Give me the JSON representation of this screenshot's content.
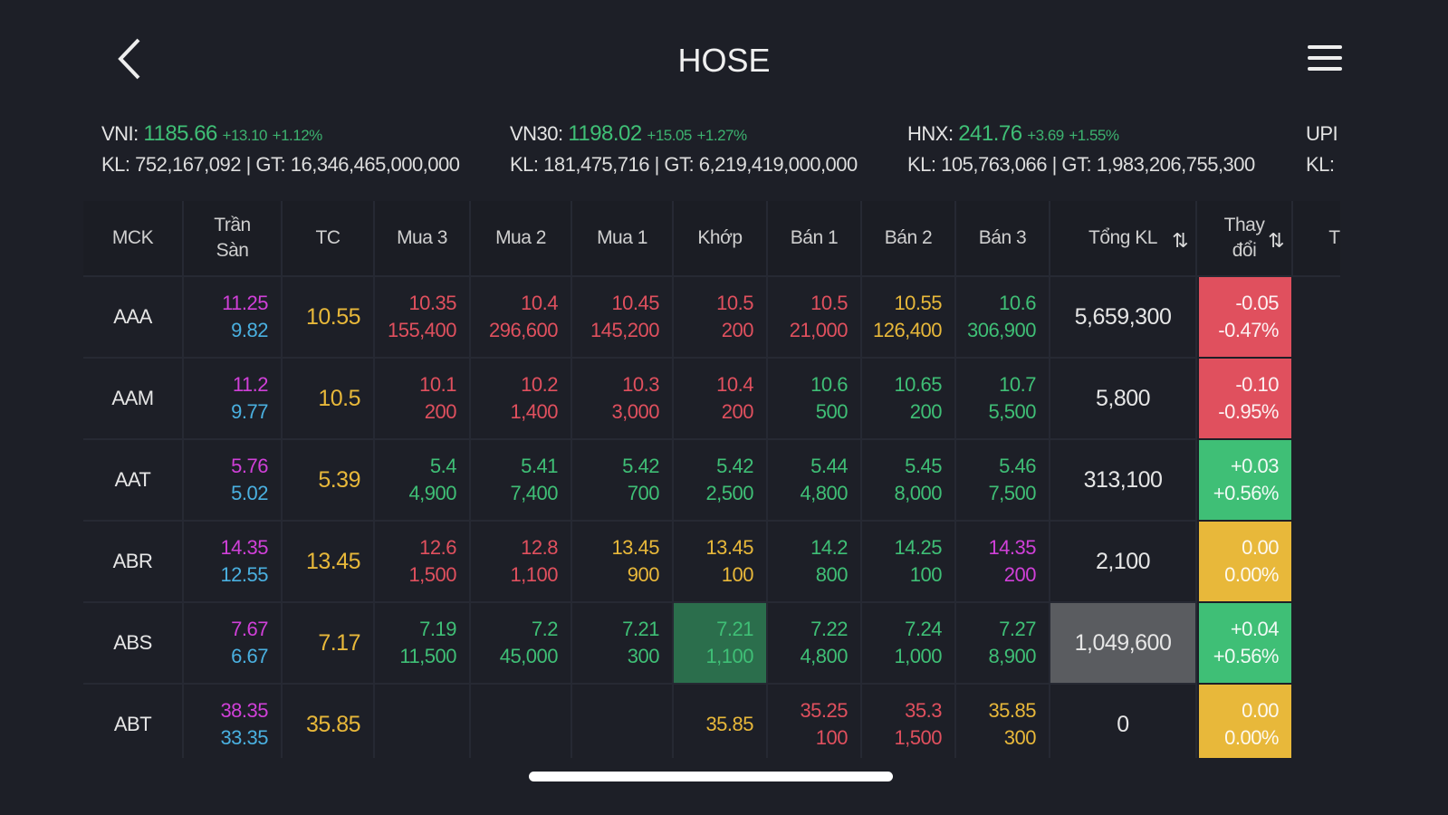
{
  "header": {
    "title": "HOSE",
    "back_icon": "chevron-left-icon",
    "menu_icon": "hamburger-menu-icon"
  },
  "indices": [
    {
      "name": "VNI:",
      "value": "1185.66",
      "change": "+13.10",
      "pct": "+1.12%",
      "kl": "KL: 752,167,092 | GT: 16,346,465,000,000"
    },
    {
      "name": "VN30:",
      "value": "1198.02",
      "change": "+15.05",
      "pct": "+1.27%",
      "kl": "KL: 181,475,716 | GT: 6,219,419,000,000"
    },
    {
      "name": "HNX:",
      "value": "241.76",
      "change": "+3.69",
      "pct": "+1.55%",
      "kl": "KL: 105,763,066 | GT: 1,983,206,755,300"
    },
    {
      "name": "UPI",
      "value": "",
      "change": "",
      "pct": "",
      "kl": "KL:"
    }
  ],
  "columns": [
    "MCK",
    "Trần\nSàn",
    "TC",
    "Mua 3",
    "Mua 2",
    "Mua 1",
    "Khớp",
    "Bán 1",
    "Bán 2",
    "Bán 3",
    "Tổng KL",
    "Thay\nđổi",
    "Tổ"
  ],
  "colors": {
    "up": "#3fbf76",
    "down": "#e0505e",
    "ref": "#e8b83a",
    "ceiling": "#d040d8",
    "floor": "#4ab0e0"
  },
  "rows": [
    {
      "mck": "AAA",
      "tran": "11.25",
      "san": "9.82",
      "tc": "10.55",
      "cells": [
        [
          "10.35",
          "155,400",
          "r"
        ],
        [
          "10.4",
          "296,600",
          "r"
        ],
        [
          "10.45",
          "145,200",
          "r"
        ],
        [
          "10.5",
          "200",
          "r"
        ],
        [
          "10.5",
          "21,000",
          "r"
        ],
        [
          "10.55",
          "126,400",
          "y"
        ],
        [
          "10.6",
          "306,900",
          "g"
        ]
      ],
      "total": "5,659,300",
      "change": "-0.05",
      "pct": "-0.47%",
      "dir": "r"
    },
    {
      "mck": "AAM",
      "tran": "11.2",
      "san": "9.77",
      "tc": "10.5",
      "cells": [
        [
          "10.1",
          "200",
          "r"
        ],
        [
          "10.2",
          "1,400",
          "r"
        ],
        [
          "10.3",
          "3,000",
          "r"
        ],
        [
          "10.4",
          "200",
          "r"
        ],
        [
          "10.6",
          "500",
          "g"
        ],
        [
          "10.65",
          "200",
          "g"
        ],
        [
          "10.7",
          "5,500",
          "g"
        ]
      ],
      "total": "5,800",
      "change": "-0.10",
      "pct": "-0.95%",
      "dir": "r"
    },
    {
      "mck": "AAT",
      "tran": "5.76",
      "san": "5.02",
      "tc": "5.39",
      "cells": [
        [
          "5.4",
          "4,900",
          "g"
        ],
        [
          "5.41",
          "7,400",
          "g"
        ],
        [
          "5.42",
          "700",
          "g"
        ],
        [
          "5.42",
          "2,500",
          "g"
        ],
        [
          "5.44",
          "4,800",
          "g"
        ],
        [
          "5.45",
          "8,000",
          "g"
        ],
        [
          "5.46",
          "7,500",
          "g"
        ]
      ],
      "total": "313,100",
      "change": "+0.03",
      "pct": "+0.56%",
      "dir": "g"
    },
    {
      "mck": "ABR",
      "tran": "14.35",
      "san": "12.55",
      "tc": "13.45",
      "cells": [
        [
          "12.6",
          "1,500",
          "r"
        ],
        [
          "12.8",
          "1,100",
          "r"
        ],
        [
          "13.45",
          "900",
          "y"
        ],
        [
          "13.45",
          "100",
          "y"
        ],
        [
          "14.2",
          "800",
          "g"
        ],
        [
          "14.25",
          "100",
          "g"
        ],
        [
          "14.35",
          "200",
          "m"
        ]
      ],
      "total": "2,100",
      "change": "0.00",
      "pct": "0.00%",
      "dir": "y"
    },
    {
      "mck": "ABS",
      "tran": "7.67",
      "san": "6.67",
      "tc": "7.17",
      "cells": [
        [
          "7.19",
          "11,500",
          "g"
        ],
        [
          "7.2",
          "45,000",
          "g"
        ],
        [
          "7.21",
          "300",
          "g"
        ],
        [
          "7.21",
          "1,100",
          "g"
        ],
        [
          "7.22",
          "4,800",
          "g"
        ],
        [
          "7.24",
          "1,000",
          "g"
        ],
        [
          "7.27",
          "8,900",
          "g"
        ]
      ],
      "total": "1,049,600",
      "change": "+0.04",
      "pct": "+0.56%",
      "dir": "g",
      "highlight": true
    },
    {
      "mck": "ABT",
      "tran": "38.35",
      "san": "33.35",
      "tc": "35.85",
      "cells": [
        [
          "",
          "",
          ""
        ],
        [
          "",
          "",
          ""
        ],
        [
          "",
          "",
          ""
        ],
        [
          "35.85",
          "",
          "y"
        ],
        [
          "35.25",
          "100",
          "r"
        ],
        [
          "35.3",
          "1,500",
          "r"
        ],
        [
          "35.85",
          "300",
          "y"
        ]
      ],
      "total": "0",
      "change": "0.00",
      "pct": "0.00%",
      "dir": "y"
    }
  ]
}
